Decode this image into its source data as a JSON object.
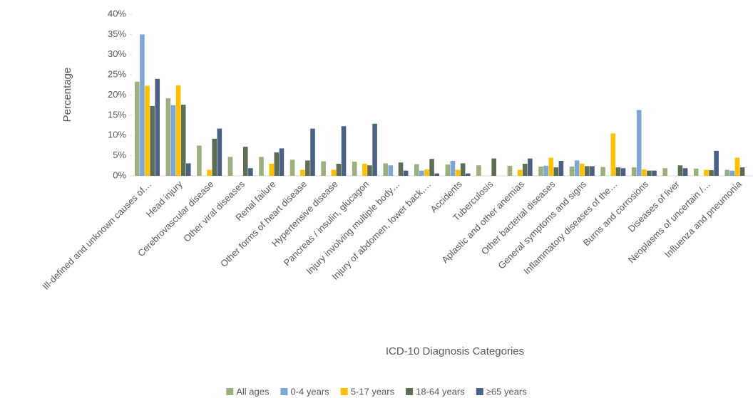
{
  "chart_data": {
    "type": "bar",
    "x_label": "ICD-10 Diagnosis Categories",
    "y_label": "Percentage",
    "categories": [
      "Ill-defined and unknown causes of…",
      "Head injury",
      "Cerebrovascular disease",
      "Other viral diseases",
      "Renal failure",
      "Other forms of heart disease",
      "Hypertensive disease",
      "Pancreas / insulin, glucagon",
      "Injury involving multiple body…",
      "Injury of abdomen, lower back,…",
      "Accidents",
      "Tuberculosis",
      "Aplastic and other anemias",
      "Other bacterial diseases",
      "General symptoms and signs",
      "Inflammatory diseases of the…",
      "Burns and corrosions",
      "Diseases of liver",
      "Neoplasms of uncertain /…",
      "Influenza and pneumonia"
    ],
    "series": [
      {
        "name": "All ages",
        "color": "#9bb07e",
        "values": [
          23.3,
          19.2,
          7.5,
          4.7,
          4.7,
          4.0,
          3.6,
          3.5,
          3.1,
          2.9,
          2.8,
          2.6,
          2.5,
          2.3,
          2.3,
          2.2,
          2.1,
          1.9,
          1.8,
          1.5
        ]
      },
      {
        "name": "0-4 years",
        "color": "#7ea6d8",
        "values": [
          35,
          17.5,
          0,
          0,
          0,
          0,
          0,
          0,
          2.6,
          1.3,
          3.7,
          0,
          0,
          2.5,
          3.8,
          0,
          16.3,
          0,
          0,
          1.3
        ]
      },
      {
        "name": "5-17 years",
        "color": "#ffc000",
        "values": [
          22.3,
          22.4,
          1.5,
          0,
          3.0,
          1.5,
          1.5,
          3.0,
          0,
          1.6,
          1.5,
          0,
          1.5,
          4.5,
          3.0,
          10.5,
          1.6,
          0,
          1.5,
          4.5
        ]
      },
      {
        "name": "18-64 years",
        "color": "#5e6e52",
        "values": [
          17.3,
          17.6,
          9.2,
          7.2,
          5.8,
          3.8,
          3.0,
          2.6,
          3.3,
          4.2,
          3.1,
          4.3,
          3.0,
          2.1,
          2.4,
          2.1,
          1.3,
          2.6,
          1.4,
          2.1
        ]
      },
      {
        "name": "≥65 years",
        "color": "#4b6183",
        "values": [
          24,
          3.1,
          11.7,
          1.9,
          6.8,
          11.7,
          12.3,
          12.9,
          1.3,
          0.6,
          0.6,
          0,
          4.3,
          3.7,
          2.4,
          1.9,
          1.3,
          1.9,
          6.2,
          0
        ]
      }
    ],
    "ylim": [
      0,
      40
    ],
    "yticks": [
      {
        "value": 0,
        "label": "0%"
      },
      {
        "value": 5,
        "label": "5%"
      },
      {
        "value": 10,
        "label": "10%"
      },
      {
        "value": 15,
        "label": "15%"
      },
      {
        "value": 20,
        "label": "20%"
      },
      {
        "value": 25,
        "label": "25%"
      },
      {
        "value": 30,
        "label": "30%"
      },
      {
        "value": 35,
        "label": "35%"
      },
      {
        "value": 40,
        "label": "40%"
      }
    ],
    "legend": "bottom"
  }
}
